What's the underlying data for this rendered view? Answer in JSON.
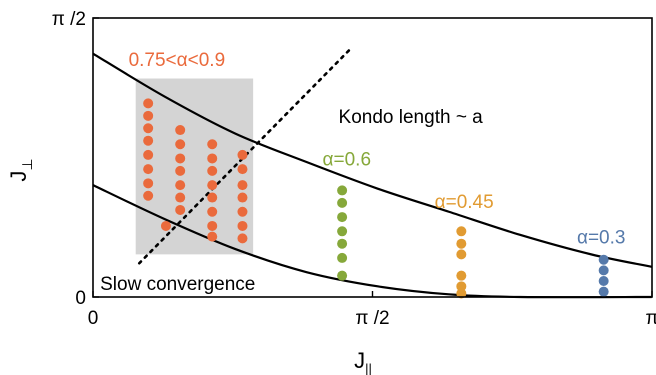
{
  "chart_data": {
    "type": "scatter",
    "xlabel": "J",
    "xlabel_sub": "||",
    "ylabel": "J",
    "ylabel_sub": "⊥",
    "xlim": [
      0,
      3.14159
    ],
    "ylim": [
      0,
      1.5708
    ],
    "grid": false,
    "x_ticks": [
      {
        "value": 0,
        "label": "0"
      },
      {
        "value": 1.5708,
        "label": "π /2"
      },
      {
        "value": 3.14159,
        "label": "π"
      }
    ],
    "y_ticks": [
      {
        "value": 0,
        "label": "0"
      },
      {
        "value": 1.5708,
        "label": "π /2"
      }
    ],
    "annotations": [
      {
        "text": "0.75<α<0.9",
        "x": 0.2,
        "y": 1.3,
        "color": "#ea6a3c"
      },
      {
        "text": "Kondo length ~ a",
        "x": 1.38,
        "y": 0.98,
        "color": "#000000"
      },
      {
        "text": "α=0.6",
        "x": 1.29,
        "y": 0.74,
        "color": "#86a83a"
      },
      {
        "text": "α=0.45",
        "x": 1.92,
        "y": 0.5,
        "color": "#e19b32"
      },
      {
        "text": "α=0.3",
        "x": 2.72,
        "y": 0.3,
        "color": "#5579aa"
      },
      {
        "text": "Slow convergence",
        "x": 0.04,
        "y": 0.04,
        "color": "#000000"
      }
    ],
    "curves": [
      {
        "name": "upper",
        "points": [
          [
            0,
            1.37
          ],
          [
            0.4,
            1.13
          ],
          [
            0.8,
            0.92
          ],
          [
            1.2,
            0.76
          ],
          [
            1.6,
            0.61
          ],
          [
            2.0,
            0.48
          ],
          [
            2.4,
            0.35
          ],
          [
            2.8,
            0.24
          ],
          [
            3.14,
            0.17
          ]
        ]
      },
      {
        "name": "lower",
        "points": [
          [
            0,
            0.63
          ],
          [
            0.4,
            0.44
          ],
          [
            0.8,
            0.27
          ],
          [
            1.2,
            0.14
          ],
          [
            1.6,
            0.06
          ],
          [
            2.0,
            0.015
          ],
          [
            2.4,
            0.0
          ],
          [
            3.14,
            0.0
          ]
        ]
      },
      {
        "name": "diagonal",
        "dashed": true,
        "points": [
          [
            0.26,
            0.19
          ],
          [
            1.45,
            1.4
          ]
        ]
      }
    ],
    "shaded_region": {
      "x": [
        0.24,
        0.9
      ],
      "y_top": 1.23,
      "y_bottom": 0.24
    },
    "series": [
      {
        "color": "#ea6a3c",
        "points": [
          [
            0.31,
            1.09
          ],
          [
            0.31,
            1.02
          ],
          [
            0.31,
            0.95
          ],
          [
            0.31,
            0.88
          ],
          [
            0.31,
            0.8
          ],
          [
            0.31,
            0.72
          ],
          [
            0.31,
            0.64
          ],
          [
            0.31,
            0.57
          ],
          [
            0.49,
            0.94
          ],
          [
            0.49,
            0.86
          ],
          [
            0.49,
            0.78
          ],
          [
            0.49,
            0.71
          ],
          [
            0.49,
            0.63
          ],
          [
            0.49,
            0.56
          ],
          [
            0.49,
            0.49
          ],
          [
            0.67,
            0.86
          ],
          [
            0.67,
            0.78
          ],
          [
            0.67,
            0.71
          ],
          [
            0.67,
            0.63
          ],
          [
            0.67,
            0.56
          ],
          [
            0.67,
            0.48
          ],
          [
            0.67,
            0.4
          ],
          [
            0.67,
            0.34
          ],
          [
            0.84,
            0.8
          ],
          [
            0.84,
            0.72
          ],
          [
            0.84,
            0.63
          ],
          [
            0.84,
            0.56
          ],
          [
            0.84,
            0.48
          ],
          [
            0.84,
            0.4
          ],
          [
            0.84,
            0.33
          ],
          [
            0.41,
            0.4
          ]
        ]
      },
      {
        "color": "#86a83a",
        "points": [
          [
            1.4,
            0.6
          ],
          [
            1.4,
            0.53
          ],
          [
            1.4,
            0.45
          ],
          [
            1.4,
            0.37
          ],
          [
            1.4,
            0.3
          ],
          [
            1.4,
            0.22
          ],
          [
            1.4,
            0.12
          ]
        ]
      },
      {
        "color": "#e19b32",
        "points": [
          [
            2.07,
            0.37
          ],
          [
            2.07,
            0.3
          ],
          [
            2.07,
            0.24
          ],
          [
            2.07,
            0.12
          ],
          [
            2.07,
            0.06
          ],
          [
            2.07,
            0.02
          ]
        ]
      },
      {
        "color": "#5579aa",
        "points": [
          [
            2.87,
            0.21
          ],
          [
            2.87,
            0.15
          ],
          [
            2.87,
            0.09
          ],
          [
            2.87,
            0.03
          ]
        ]
      }
    ]
  }
}
